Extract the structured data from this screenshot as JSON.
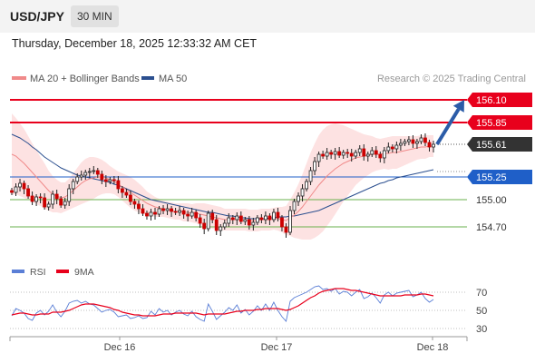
{
  "header": {
    "pair": "USD/JPY",
    "timeframe": "30 MIN"
  },
  "datetime": "Thursday, December 18, 2025 12:33:32 AM CET",
  "legend": {
    "ma20": "MA 20 + Bollinger Bands",
    "ma50": "MA 50",
    "credit": "Research © 2025 Trading Central",
    "rsi": "RSI",
    "ma9": "9MA"
  },
  "colors": {
    "candle_up": "#ffffff",
    "candle_down": "#cc0000",
    "ma20": "#f08a8a",
    "ma50": "#2b4f8f",
    "bollinger_fill": "#fde2e2",
    "resistance": "#e8001c",
    "pivot": "#1f5fc8",
    "support": "#6ab04c",
    "arrow": "#2b5ca8",
    "rsi": "#5b7fd6",
    "rsi_ma": "#e8001c"
  },
  "chart_data": [
    {
      "type": "candlestick",
      "x_ticks": [
        "Dec 16",
        "Dec 17",
        "Dec 18"
      ],
      "ylim": [
        154.38,
        156.2
      ],
      "levels": [
        {
          "label": "156.10",
          "value": 156.1,
          "kind": "resistance"
        },
        {
          "label": "155.85",
          "value": 155.85,
          "kind": "resistance"
        },
        {
          "label": "155.61",
          "value": 155.61,
          "kind": "current"
        },
        {
          "label": "155.25",
          "value": 155.25,
          "kind": "pivot"
        },
        {
          "label": "155.00",
          "value": 155.0,
          "kind": "support"
        },
        {
          "label": "154.70",
          "value": 154.7,
          "kind": "support"
        }
      ],
      "series": [
        {
          "name": "MA 20 + Bollinger Bands"
        },
        {
          "name": "MA 50"
        }
      ],
      "close": [
        155.08,
        155.14,
        155.18,
        155.12,
        155.04,
        154.98,
        155.03,
        155.02,
        154.92,
        154.95,
        155.06,
        155.01,
        154.94,
        154.98,
        155.12,
        155.2,
        155.25,
        155.27,
        155.3,
        155.31,
        155.32,
        155.28,
        155.22,
        155.2,
        155.22,
        155.21,
        155.12,
        155.08,
        155.05,
        154.98,
        154.95,
        154.9,
        154.85,
        154.82,
        154.86,
        154.84,
        154.9,
        154.88,
        154.9,
        154.87,
        154.86,
        154.88,
        154.84,
        154.82,
        154.86,
        154.8,
        154.74,
        154.68,
        154.85,
        154.78,
        154.66,
        154.7,
        154.74,
        154.8,
        154.78,
        154.82,
        154.76,
        154.78,
        154.72,
        154.75,
        154.8,
        154.78,
        154.82,
        154.78,
        154.86,
        154.8,
        154.7,
        154.64,
        154.88,
        154.98,
        155.04,
        155.12,
        155.2,
        155.32,
        155.42,
        155.5,
        155.48,
        155.52,
        155.5,
        155.53,
        155.49,
        155.52,
        155.51,
        155.48,
        155.52,
        155.56,
        155.48,
        155.5,
        155.54,
        155.5,
        155.46,
        155.54,
        155.58,
        155.56,
        155.6,
        155.62,
        155.64,
        155.66,
        155.62,
        155.64,
        155.68,
        155.63,
        155.58,
        155.61
      ],
      "ma20": [
        155.5,
        155.48,
        155.44,
        155.4,
        155.35,
        155.3,
        155.25,
        155.2,
        155.15,
        155.1,
        155.06,
        155.04,
        155.02,
        155.03,
        155.06,
        155.1,
        155.14,
        155.18,
        155.21,
        155.23,
        155.24,
        155.25,
        155.25,
        155.24,
        155.22,
        155.2,
        155.17,
        155.14,
        155.11,
        155.08,
        155.05,
        155.02,
        154.99,
        154.96,
        154.94,
        154.92,
        154.91,
        154.9,
        154.89,
        154.88,
        154.87,
        154.87,
        154.86,
        154.86,
        154.85,
        154.85,
        154.84,
        154.83,
        154.82,
        154.81,
        154.8,
        154.79,
        154.78,
        154.78,
        154.78,
        154.78,
        154.78,
        154.78,
        154.77,
        154.77,
        154.77,
        154.78,
        154.78,
        154.78,
        154.79,
        154.79,
        154.78,
        154.77,
        154.8,
        154.83,
        154.87,
        154.92,
        154.98,
        155.04,
        155.1,
        155.16,
        155.21,
        155.26,
        155.3,
        155.34,
        155.37,
        155.4,
        155.42,
        155.44,
        155.46,
        155.47,
        155.48,
        155.49,
        155.5,
        155.5,
        155.5,
        155.51,
        155.51,
        155.52,
        155.52,
        155.53,
        155.54,
        155.55,
        155.56,
        155.57,
        155.58,
        155.58,
        155.59,
        155.59
      ],
      "ma50": [
        155.72,
        155.7,
        155.68,
        155.65,
        155.62,
        155.58,
        155.55,
        155.51,
        155.47,
        155.44,
        155.41,
        155.38,
        155.35,
        155.33,
        155.31,
        155.29,
        155.27,
        155.26,
        155.25,
        155.24,
        155.23,
        155.22,
        155.21,
        155.2,
        155.19,
        155.17,
        155.16,
        155.14,
        155.12,
        155.1,
        155.08,
        155.06,
        155.04,
        155.02,
        155.0,
        154.99,
        154.98,
        154.97,
        154.96,
        154.95,
        154.94,
        154.93,
        154.92,
        154.91,
        154.9,
        154.89,
        154.88,
        154.87,
        154.86,
        154.86,
        154.85,
        154.84,
        154.83,
        154.82,
        154.82,
        154.81,
        154.8,
        154.8,
        154.79,
        154.79,
        154.79,
        154.79,
        154.79,
        154.8,
        154.8,
        154.81,
        154.81,
        154.81,
        154.82,
        154.82,
        154.83,
        154.84,
        154.85,
        154.86,
        154.87,
        154.88,
        154.9,
        154.92,
        154.94,
        154.96,
        154.98,
        155.0,
        155.02,
        155.04,
        155.06,
        155.08,
        155.1,
        155.12,
        155.14,
        155.16,
        155.18,
        155.19,
        155.21,
        155.22,
        155.24,
        155.25,
        155.26,
        155.27,
        155.28,
        155.29,
        155.3,
        155.31,
        155.32,
        155.33
      ],
      "bb_width": [
        0.45,
        0.42,
        0.4,
        0.38,
        0.35,
        0.32,
        0.3,
        0.27,
        0.25,
        0.22,
        0.2,
        0.18,
        0.17,
        0.16,
        0.17,
        0.19,
        0.21,
        0.23,
        0.24,
        0.24,
        0.23,
        0.21,
        0.19,
        0.17,
        0.15,
        0.14,
        0.14,
        0.15,
        0.16,
        0.17,
        0.17,
        0.16,
        0.15,
        0.13,
        0.12,
        0.11,
        0.1,
        0.09,
        0.09,
        0.09,
        0.09,
        0.09,
        0.1,
        0.1,
        0.1,
        0.11,
        0.12,
        0.13,
        0.13,
        0.13,
        0.13,
        0.13,
        0.12,
        0.12,
        0.12,
        0.12,
        0.12,
        0.12,
        0.12,
        0.12,
        0.12,
        0.12,
        0.12,
        0.12,
        0.12,
        0.13,
        0.14,
        0.16,
        0.2,
        0.25,
        0.3,
        0.36,
        0.42,
        0.48,
        0.52,
        0.55,
        0.56,
        0.55,
        0.53,
        0.5,
        0.46,
        0.42,
        0.38,
        0.34,
        0.3,
        0.27,
        0.24,
        0.22,
        0.2,
        0.18,
        0.17,
        0.17,
        0.18,
        0.18,
        0.18,
        0.17,
        0.16,
        0.15,
        0.14,
        0.13,
        0.13,
        0.13,
        0.12,
        0.12
      ],
      "forecast_arrow": {
        "from": 155.61,
        "to": 156.1
      }
    },
    {
      "type": "line",
      "series": [
        {
          "name": "RSI"
        },
        {
          "name": "9MA"
        }
      ],
      "y_ticks": [
        "70",
        "50",
        "30"
      ],
      "ylim": [
        20,
        80
      ],
      "rsi": [
        44,
        52,
        50,
        47,
        41,
        39,
        47,
        50,
        45,
        49,
        56,
        48,
        43,
        49,
        58,
        60,
        61,
        58,
        60,
        57,
        56,
        52,
        48,
        50,
        51,
        48,
        43,
        44,
        45,
        41,
        42,
        44,
        41,
        42,
        49,
        45,
        52,
        48,
        50,
        45,
        48,
        50,
        46,
        44,
        49,
        43,
        40,
        38,
        57,
        49,
        40,
        44,
        48,
        53,
        50,
        56,
        47,
        51,
        45,
        49,
        55,
        50,
        57,
        50,
        59,
        50,
        43,
        38,
        60,
        64,
        66,
        68,
        70,
        73,
        76,
        77,
        73,
        74,
        71,
        74,
        68,
        71,
        70,
        66,
        70,
        73,
        63,
        65,
        69,
        64,
        58,
        67,
        70,
        66,
        69,
        70,
        71,
        72,
        65,
        67,
        70,
        63,
        59,
        62
      ],
      "rsi_ma": [
        45,
        46,
        47,
        47,
        46,
        45,
        45,
        46,
        46,
        46,
        48,
        48,
        48,
        49,
        50,
        52,
        54,
        56,
        57,
        57,
        57,
        56,
        55,
        54,
        53,
        51,
        50,
        48,
        47,
        46,
        45,
        45,
        44,
        44,
        44,
        44,
        45,
        46,
        46,
        46,
        47,
        47,
        47,
        47,
        47,
        47,
        46,
        45,
        46,
        46,
        46,
        46,
        46,
        47,
        48,
        49,
        49,
        50,
        50,
        50,
        51,
        51,
        52,
        52,
        52,
        52,
        51,
        50,
        51,
        53,
        55,
        58,
        61,
        64,
        66,
        69,
        71,
        72,
        73,
        74,
        74,
        74,
        73,
        72,
        72,
        71,
        70,
        69,
        68,
        67,
        66,
        66,
        66,
        66,
        66,
        66,
        67,
        67,
        67,
        67,
        68,
        68,
        67,
        66
      ]
    }
  ]
}
